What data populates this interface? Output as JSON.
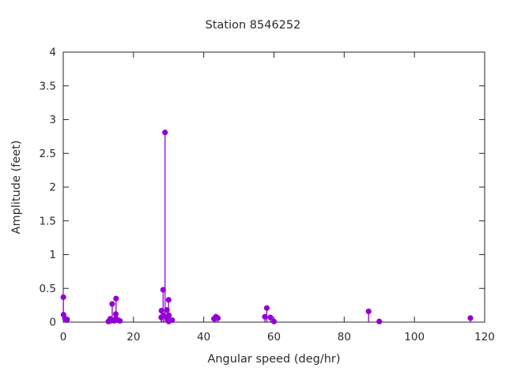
{
  "page": {
    "background": "#ffffff"
  },
  "chart_data": {
    "type": "scatter",
    "style": "stem",
    "title": "Station 8546252",
    "xlabel": "Angular speed (deg/hr)",
    "ylabel": "Amplitude (feet)",
    "xlim": [
      0,
      120
    ],
    "ylim": [
      0,
      4
    ],
    "xticks": [
      0,
      20,
      40,
      60,
      80,
      100,
      120
    ],
    "yticks": [
      0,
      0.5,
      1,
      1.5,
      2,
      2.5,
      3,
      3.5,
      4
    ],
    "grid": false,
    "legend": "none",
    "marker": "filled-circle",
    "marker_color": "#9400d3",
    "axis_color": "#262626",
    "text_color": "#2b2b2b",
    "points": [
      [
        0.041,
        0.37
      ],
      [
        0.082,
        0.11
      ],
      [
        0.544,
        0.05
      ],
      [
        1.016,
        0.03
      ],
      [
        1.098,
        0.04
      ],
      [
        12.855,
        0.01
      ],
      [
        13.399,
        0.05
      ],
      [
        13.472,
        0.02
      ],
      [
        13.943,
        0.27
      ],
      [
        14.497,
        0.02
      ],
      [
        14.959,
        0.12
      ],
      [
        15.0,
        0.05
      ],
      [
        15.041,
        0.35
      ],
      [
        15.585,
        0.03
      ],
      [
        16.139,
        0.02
      ],
      [
        27.895,
        0.07
      ],
      [
        27.968,
        0.17
      ],
      [
        28.44,
        0.48
      ],
      [
        28.513,
        0.1
      ],
      [
        28.984,
        2.81
      ],
      [
        29.456,
        0.07
      ],
      [
        29.528,
        0.18
      ],
      [
        29.959,
        0.03
      ],
      [
        30.0,
        0.33
      ],
      [
        30.041,
        0.01
      ],
      [
        30.082,
        0.1
      ],
      [
        31.016,
        0.03
      ],
      [
        42.927,
        0.05
      ],
      [
        43.476,
        0.08
      ],
      [
        44.025,
        0.06
      ],
      [
        57.424,
        0.08
      ],
      [
        57.968,
        0.21
      ],
      [
        58.984,
        0.07
      ],
      [
        60.0,
        0.01
      ],
      [
        86.952,
        0.16
      ],
      [
        90.0,
        0.01
      ],
      [
        115.942,
        0.06
      ]
    ]
  }
}
